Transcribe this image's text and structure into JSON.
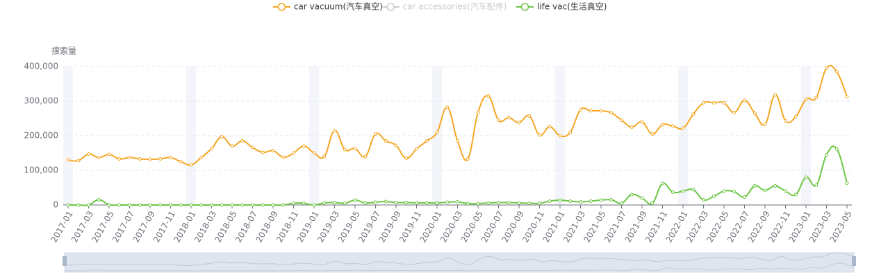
{
  "chart_data": {
    "type": "line",
    "y_axis_label": "搜索量",
    "categories": [
      "2017-01",
      null,
      "2017-03",
      null,
      "2017-05",
      null,
      "2017-07",
      null,
      "2017-09",
      null,
      "2017-11",
      null,
      "2018-01",
      null,
      "2018-03",
      null,
      "2018-05",
      null,
      "2018-07",
      null,
      "2018-09",
      null,
      "2018-11",
      null,
      "2019-01",
      null,
      "2019-03",
      null,
      "2019-05",
      null,
      "2019-07",
      null,
      "2019-09",
      null,
      "2019-11",
      null,
      "2020-01",
      null,
      "2020-03",
      null,
      "2020-05",
      null,
      "2020-07",
      null,
      "2020-09",
      null,
      "2020-11",
      null,
      "2021-01",
      null,
      "2021-03",
      null,
      "2021-05",
      null,
      "2021-07",
      null,
      "2021-09",
      null,
      "2021-11",
      null,
      "2022-01",
      null,
      "2022-03",
      null,
      "2022-05",
      null,
      "2022-07",
      null,
      "2022-09",
      null,
      "2022-11",
      null,
      "2023-01",
      null,
      "2023-03",
      null,
      "2023-05"
    ],
    "series": [
      {
        "name": "car vacuum(汽车真空)",
        "color": "#f5a623",
        "values": [
          130000,
          128000,
          147000,
          137000,
          146000,
          133000,
          137000,
          133000,
          132000,
          133000,
          137000,
          125000,
          116000,
          137000,
          163000,
          197000,
          170000,
          185000,
          166000,
          152000,
          157000,
          138000,
          150000,
          170000,
          150000,
          140000,
          215000,
          160000,
          163000,
          140000,
          205000,
          185000,
          172000,
          135000,
          162000,
          185000,
          210000,
          282000,
          185000,
          133000,
          268000,
          315000,
          245000,
          252000,
          238000,
          257000,
          202000,
          226000,
          200000,
          210000,
          275000,
          272000,
          272000,
          266000,
          245000,
          225000,
          240000,
          205000,
          232000,
          228000,
          222000,
          262000,
          295000,
          295000,
          295000,
          267000,
          302000,
          265000,
          233000,
          318000,
          243000,
          255000,
          305000,
          310000,
          395000,
          385000,
          313000
        ]
      },
      {
        "name": "car accessories(汽车配件)",
        "color": "#cccccc",
        "visible": false
      },
      {
        "name": "life vac(生活真空)",
        "color": "#6cc644",
        "values": [
          0,
          0,
          0,
          15000,
          1000,
          0,
          0,
          0,
          0,
          0,
          0,
          0,
          0,
          0,
          0,
          0,
          0,
          0,
          0,
          0,
          0,
          0,
          5000,
          5000,
          0,
          6000,
          7000,
          5000,
          14000,
          6000,
          8000,
          10000,
          7000,
          7000,
          6000,
          6000,
          6000,
          8000,
          9000,
          4000,
          4000,
          6000,
          7000,
          7000,
          6000,
          5000,
          5000,
          11000,
          14000,
          11000,
          9000,
          11000,
          14000,
          15000,
          5000,
          30000,
          20000,
          5000,
          62000,
          37000,
          40000,
          44000,
          15000,
          25000,
          40000,
          38000,
          23000,
          55000,
          42000,
          55000,
          40000,
          30000,
          80000,
          57000,
          145000,
          162000,
          63000
        ]
      }
    ],
    "ylim": [
      0,
      400000
    ],
    "yticks": [
      0,
      {
        "value": 100000,
        "label": "100,000"
      },
      {
        "value": 200000,
        "label": "200,000"
      },
      {
        "value": 300000,
        "label": "300,000"
      },
      {
        "value": 400000,
        "label": "400,000"
      }
    ],
    "grid": true
  }
}
